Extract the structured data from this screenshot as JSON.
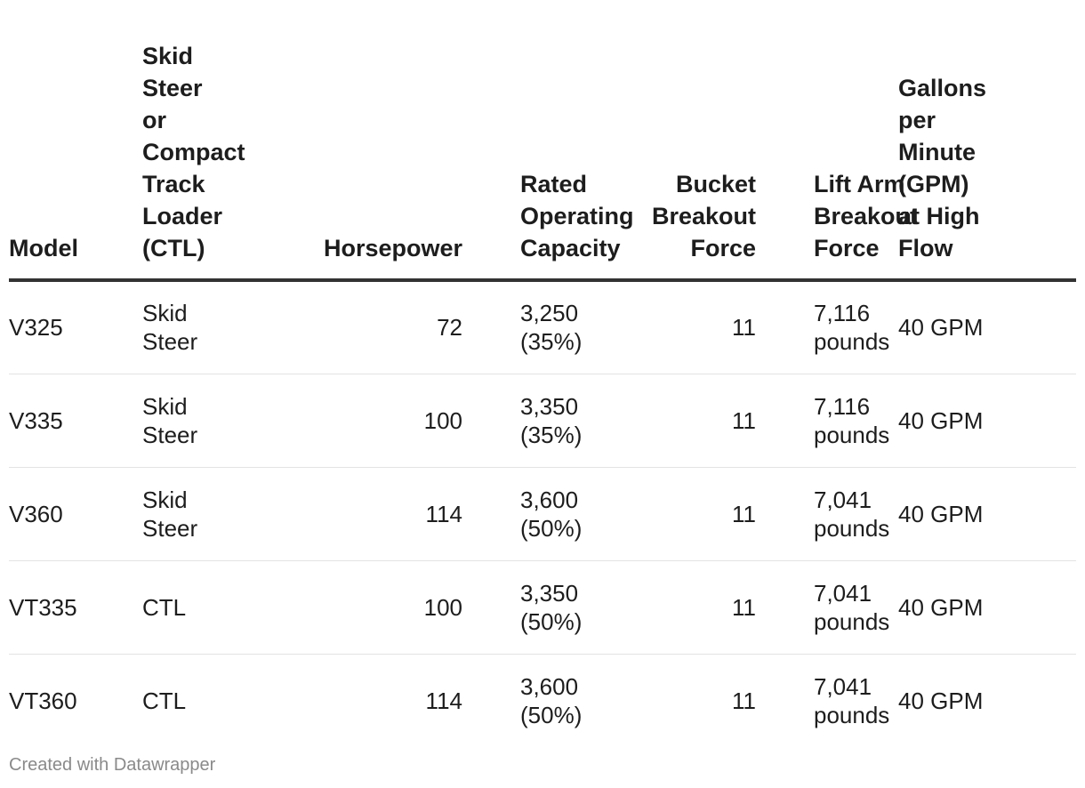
{
  "chart_data": {
    "type": "table",
    "columns": [
      "Model",
      "Skid Steer or Compact Track Loader (CTL)",
      "Horsepower",
      "Rated Operating Capacity",
      "Bucket Breakout Force",
      "Lift Arm Breakout Force",
      "Gallons per Minute (GPM) at High Flow"
    ],
    "rows": [
      [
        "V325",
        "Skid Steer",
        "72",
        "3,250 (35%)",
        "11",
        "7,116 pounds",
        "40 GPM"
      ],
      [
        "V335",
        "Skid Steer",
        "100",
        "3,350 (35%)",
        "11",
        "7,116 pounds",
        "40 GPM"
      ],
      [
        "V360",
        "Skid Steer",
        "114",
        "3,600 (50%)",
        "11",
        "7,041 pounds",
        "40 GPM"
      ],
      [
        "VT335",
        "CTL",
        "100",
        "3,350 (50%)",
        "11",
        "7,041 pounds",
        "40 GPM"
      ],
      [
        "VT360",
        "CTL",
        "114",
        "3,600 (50%)",
        "11",
        "7,041 pounds",
        "40 GPM"
      ]
    ]
  },
  "footer": {
    "credit": "Created with Datawrapper"
  }
}
